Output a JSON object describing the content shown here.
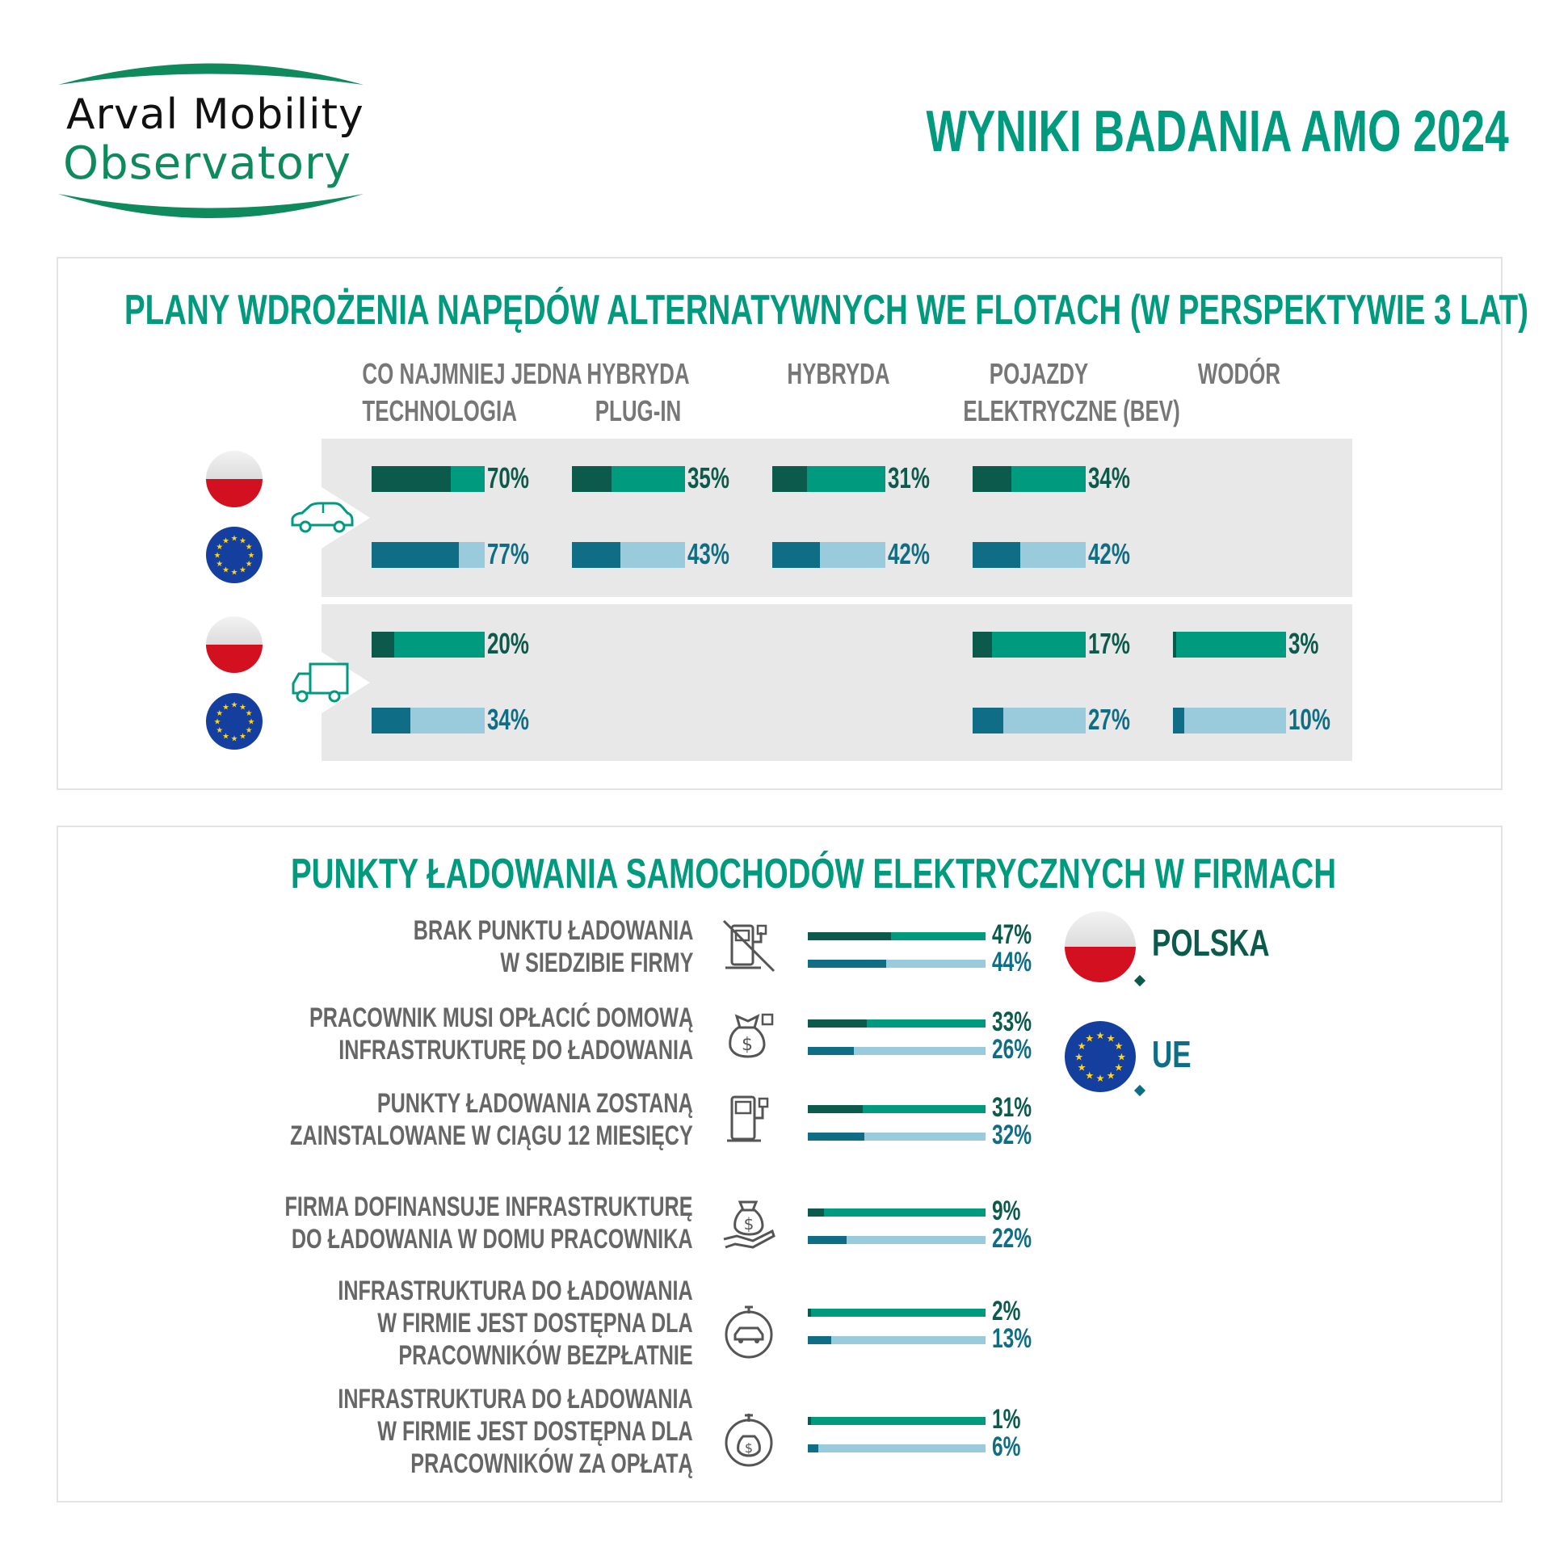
{
  "logo": {
    "line1": "Arval Mobility",
    "line2": "Observatory"
  },
  "page_title": "WYNIKI BADANIA AMO 2024",
  "colors": {
    "pl_dark": "#0b5a4c",
    "pl_light": "#009a7e",
    "eu_dark": "#0f6e86",
    "eu_light": "#99cbdc",
    "title": "#009a7e"
  },
  "section1": {
    "title": "PLANY WDROŻENIA NAPĘDÓW ALTERNATYWNYCH WE FLOTACH (W PERSPEKTYWIE 3 LAT)",
    "columns": [
      {
        "line1": "CO NAJMNIEJ JEDNA",
        "line2": "TECHNOLOGIA"
      },
      {
        "line1": "HYBRYDA",
        "line2": "PLUG-IN"
      },
      {
        "line1": "HYBRYDA",
        "line2": ""
      },
      {
        "line1": "POJAZDY",
        "line2": "ELEKTRYCZNE (BEV)"
      },
      {
        "line1": "WODÓR",
        "line2": ""
      }
    ],
    "icons": [
      "car-icon",
      "truck-icon"
    ]
  },
  "section2": {
    "title": "PUNKTY ŁADOWANIA SAMOCHODÓW ELEKTRYCZNYCH W FIRMACH",
    "rows": [
      {
        "line1": "BRAK PUNKTU ŁADOWANIA",
        "line2": "W SIEDZIBIE FIRMY",
        "line3": "",
        "icon": "no-charger-icon"
      },
      {
        "line1": "PRACOWNIK MUSI OPŁACIĆ DOMOWĄ",
        "line2": "INFRASTRUKTURĘ DO ŁADOWANIA",
        "line3": "",
        "icon": "money-plug-icon"
      },
      {
        "line1": "PUNKTY ŁADOWANIA ZOSTANĄ",
        "line2": "ZAINSTALOWANE W CIĄGU 12 MIESIĘCY",
        "line3": "",
        "icon": "charger-icon"
      },
      {
        "line1": "FIRMA DOFINANSUJE INFRASTRUKTURĘ",
        "line2": "DO ŁADOWANIA W DOMU PRACOWNIKA",
        "line3": "",
        "icon": "hand-money-icon"
      },
      {
        "line1": "INFRASTRUKTURA DO ŁADOWANIA",
        "line2": "W FIRMIE JEST DOSTĘPNA DLA",
        "line3": "PRACOWNIKÓW BEZPŁATNIE",
        "icon": "car-plug-icon"
      },
      {
        "line1": "INFRASTRUKTURA DO ŁADOWANIA",
        "line2": "W FIRMIE JEST DOSTĘPNA DLA",
        "line3": "PRACOWNIKÓW ZA OPŁATĄ",
        "icon": "paid-plug-icon"
      }
    ],
    "legend": {
      "pl": "POLSKA",
      "eu": "UE"
    }
  },
  "chart_data": [
    {
      "type": "bar",
      "title": "PLANY WDROŻENIA NAPĘDÓW ALTERNATYWNYCH WE FLOTACH (W PERSPEKTYWIE 3 LAT)",
      "categories": [
        "CO NAJMNIEJ JEDNA TECHNOLOGIA",
        "HYBRYDA PLUG-IN",
        "HYBRYDA",
        "POJAZDY ELEKTRYCZNE (BEV)",
        "WODÓR"
      ],
      "groups": [
        {
          "icon": "car-icon",
          "series": [
            {
              "flag": "pl",
              "values": [
                70,
                35,
                31,
                34,
                null
              ],
              "labels": [
                "70%",
                "35%",
                "31%",
                "34%",
                ""
              ]
            },
            {
              "flag": "eu",
              "values": [
                77,
                43,
                42,
                42,
                null
              ],
              "labels": [
                "77%",
                "43%",
                "42%",
                "42%",
                ""
              ]
            }
          ]
        },
        {
          "icon": "truck-icon",
          "series": [
            {
              "flag": "pl",
              "values": [
                20,
                null,
                null,
                17,
                3
              ],
              "labels": [
                "20%",
                "",
                "",
                "17%",
                "3%"
              ]
            },
            {
              "flag": "eu",
              "values": [
                34,
                null,
                null,
                27,
                10
              ],
              "labels": [
                "34%",
                "",
                "",
                "27%",
                "10%"
              ]
            }
          ]
        }
      ]
    },
    {
      "type": "bar",
      "title": "PUNKTY ŁADOWANIA SAMOCHODÓW ELEKTRYCZNYCH W FIRMACH",
      "categories": [
        "BRAK PUNKTU ŁADOWANIA W SIEDZIBIE FIRMY",
        "PRACOWNIK MUSI OPŁACIĆ DOMOWĄ INFRASTRUKTURĘ DO ŁADOWANIA",
        "PUNKTY ŁADOWANIA ZOSTANĄ ZAINSTALOWANE W CIĄGU 12 MIESIĘCY",
        "FIRMA DOFINANSUJE INFRASTRUKTURĘ DO ŁADOWANIA W DOMU PRACOWNIKA",
        "INFRASTRUKTURA DO ŁADOWANIA W FIRMIE JEST DOSTĘPNA DLA PRACOWNIKÓW BEZPŁATNIE",
        "INFRASTRUKTURA DO ŁADOWANIA W FIRMIE JEST DOSTĘPNA DLA PRACOWNIKÓW ZA OPŁATĄ"
      ],
      "series": [
        {
          "name": "POLSKA",
          "values": [
            47,
            33,
            31,
            9,
            2,
            1
          ],
          "labels": [
            "47%",
            "33%",
            "31%",
            "9%",
            "2%",
            "1%"
          ]
        },
        {
          "name": "UE",
          "values": [
            44,
            26,
            32,
            22,
            13,
            6
          ],
          "labels": [
            "44%",
            "26%",
            "32%",
            "22%",
            "13%",
            "6%"
          ]
        }
      ]
    }
  ]
}
